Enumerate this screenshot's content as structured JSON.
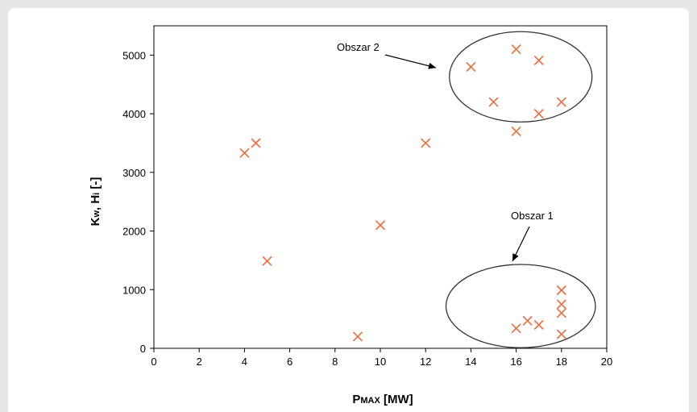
{
  "chart_data": {
    "type": "scatter",
    "xlabel_main": "P",
    "xlabel_sub": "MAX",
    "xlabel_unit": " [MW]",
    "ylabel_k": "K",
    "ylabel_k_sub": "w",
    "ylabel_h": ", H",
    "ylabel_h_sub": "i",
    "ylabel_unit": " [-]",
    "xlim": [
      0,
      20
    ],
    "ylim": [
      0,
      5500
    ],
    "x_ticks": [
      "0",
      "2",
      "4",
      "6",
      "8",
      "10",
      "12",
      "14",
      "16",
      "18",
      "20"
    ],
    "y_ticks": [
      "0",
      "1000",
      "2000",
      "3000",
      "4000",
      "5000"
    ],
    "grid": false,
    "marker_color": "#ec6b3c",
    "points": [
      {
        "x": 4,
        "y": 3330
      },
      {
        "x": 4.5,
        "y": 3500
      },
      {
        "x": 5,
        "y": 1490
      },
      {
        "x": 9,
        "y": 200
      },
      {
        "x": 10,
        "y": 2100
      },
      {
        "x": 12,
        "y": 3500
      },
      {
        "x": 14,
        "y": 4800
      },
      {
        "x": 15,
        "y": 4200
      },
      {
        "x": 16,
        "y": 5100
      },
      {
        "x": 16,
        "y": 3700
      },
      {
        "x": 17,
        "y": 4910
      },
      {
        "x": 17,
        "y": 4000
      },
      {
        "x": 18,
        "y": 4200
      },
      {
        "x": 16,
        "y": 340
      },
      {
        "x": 16.5,
        "y": 470
      },
      {
        "x": 17,
        "y": 400
      },
      {
        "x": 18,
        "y": 990
      },
      {
        "x": 18,
        "y": 750
      },
      {
        "x": 18,
        "y": 600
      },
      {
        "x": 18,
        "y": 240
      }
    ],
    "annotations": [
      {
        "label": "Obszar 2",
        "cx": 16.2,
        "cy": 4630,
        "rx": 3.15,
        "ry": 770
      },
      {
        "label": "Obszar 1",
        "cx": 16.2,
        "cy": 720,
        "rx": 3.3,
        "ry": 710
      }
    ]
  }
}
